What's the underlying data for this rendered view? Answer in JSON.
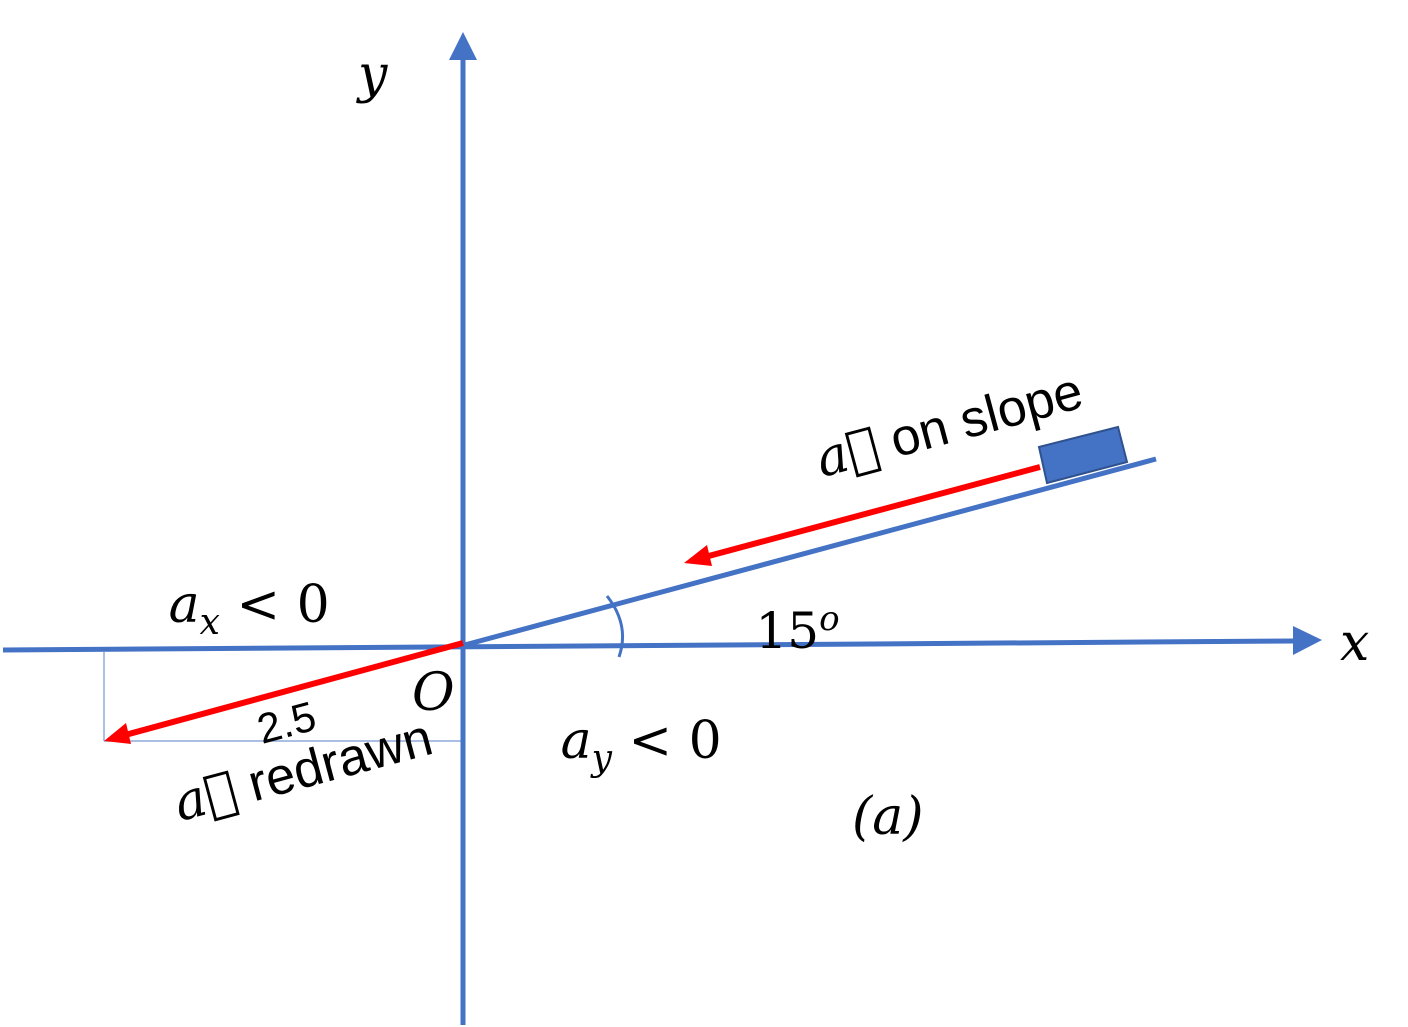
{
  "colors": {
    "axis": "#4472c4",
    "vector": "#ff0000",
    "block": "#4472c4",
    "block_edge": "#2f528f",
    "projection": "#8faadc"
  },
  "labels": {
    "y_axis": "y",
    "x_axis": "x",
    "origin": "O",
    "angle": "15",
    "angle_sup": "o",
    "a_on_slope_symbol": "a⃗",
    "a_on_slope_text": " on slope",
    "a_redrawn_symbol": "a⃗",
    "a_redrawn_text": " redrawn",
    "magnitude": "2.5",
    "ax_symbol": "a",
    "ax_sub": "x",
    "ax_relation": " < 0",
    "ay_symbol": "a",
    "ay_sub": "y",
    "ay_relation": " < 0",
    "panel": "(a)"
  }
}
